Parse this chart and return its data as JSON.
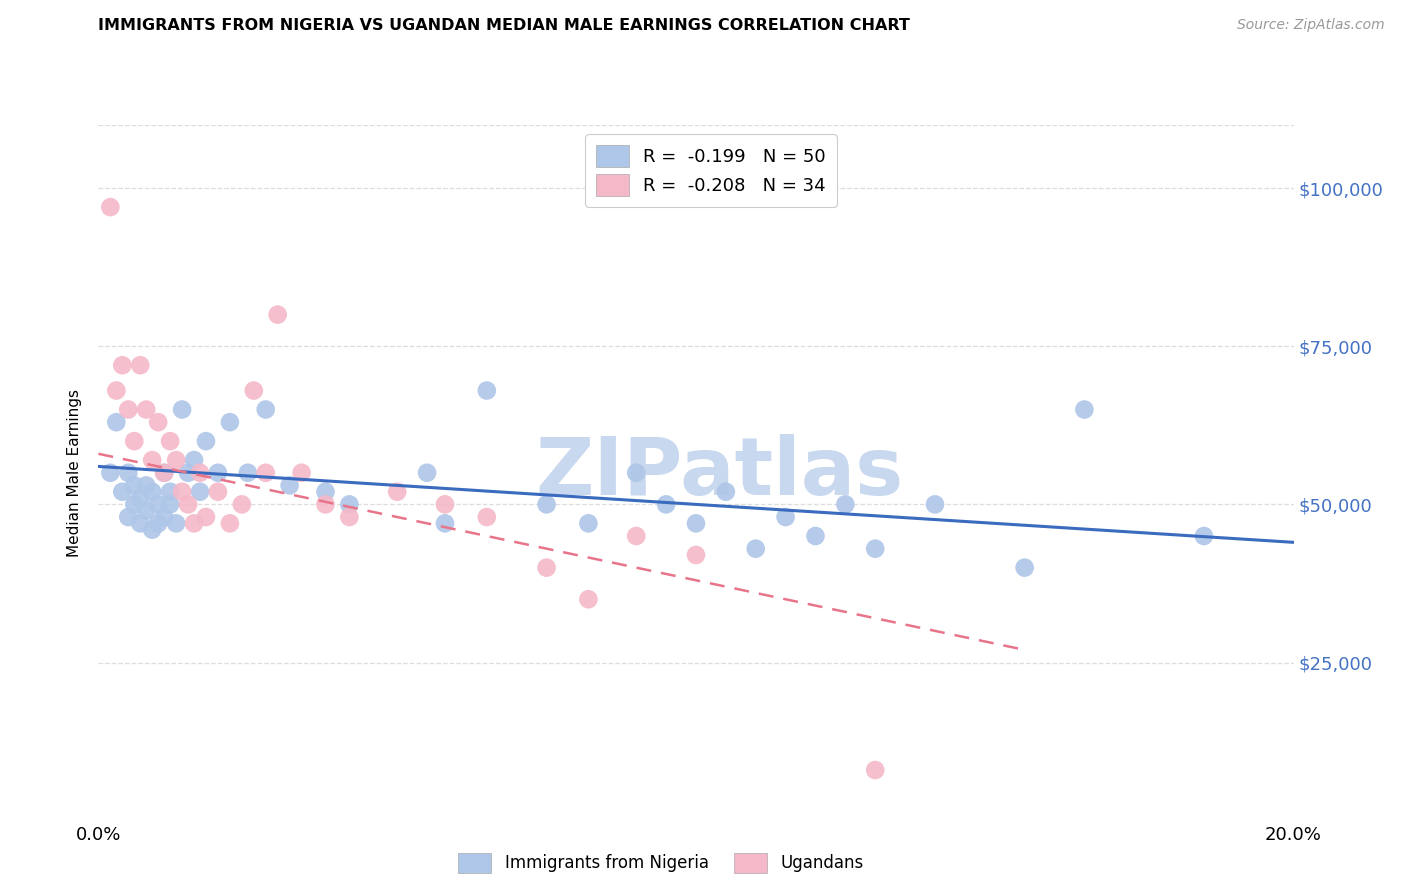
{
  "title": "IMMIGRANTS FROM NIGERIA VS UGANDAN MEDIAN MALE EARNINGS CORRELATION CHART",
  "source": "Source: ZipAtlas.com",
  "ylabel": "Median Male Earnings",
  "xlim": [
    0.0,
    0.2
  ],
  "ylim": [
    0,
    110000
  ],
  "yticks": [
    25000,
    50000,
    75000,
    100000
  ],
  "ytick_labels": [
    "$25,000",
    "$50,000",
    "$75,000",
    "$100,000"
  ],
  "xticks": [
    0.0,
    0.05,
    0.1,
    0.15,
    0.2
  ],
  "xtick_labels": [
    "0.0%",
    "",
    "",
    "",
    "20.0%"
  ],
  "legend_r_nigeria": "-0.199",
  "legend_n_nigeria": "50",
  "legend_r_ugandan": "-0.208",
  "legend_n_ugandan": "34",
  "nigeria_color": "#aec6e8",
  "ugandan_color": "#f4b8c8",
  "nigeria_line_color": "#3a6bbf",
  "ugandan_line_color": "#e8748a",
  "bg_color": "#ffffff",
  "watermark": "ZIPatlas",
  "watermark_color": "#c8d8ee",
  "nigeria_scatter_x": [
    0.002,
    0.003,
    0.004,
    0.005,
    0.005,
    0.006,
    0.006,
    0.007,
    0.007,
    0.008,
    0.008,
    0.009,
    0.009,
    0.01,
    0.01,
    0.011,
    0.011,
    0.012,
    0.012,
    0.013,
    0.014,
    0.015,
    0.016,
    0.017,
    0.018,
    0.02,
    0.022,
    0.025,
    0.028,
    0.032,
    0.038,
    0.042,
    0.055,
    0.058,
    0.065,
    0.075,
    0.082,
    0.09,
    0.095,
    0.1,
    0.105,
    0.11,
    0.115,
    0.12,
    0.125,
    0.13,
    0.14,
    0.155,
    0.165,
    0.185
  ],
  "nigeria_scatter_y": [
    55000,
    63000,
    52000,
    48000,
    55000,
    50000,
    53000,
    47000,
    51000,
    49000,
    53000,
    46000,
    52000,
    50000,
    47000,
    55000,
    48000,
    52000,
    50000,
    47000,
    65000,
    55000,
    57000,
    52000,
    60000,
    55000,
    63000,
    55000,
    65000,
    53000,
    52000,
    50000,
    55000,
    47000,
    68000,
    50000,
    47000,
    55000,
    50000,
    47000,
    52000,
    43000,
    48000,
    45000,
    50000,
    43000,
    50000,
    40000,
    65000,
    45000
  ],
  "ugandan_scatter_x": [
    0.002,
    0.003,
    0.004,
    0.005,
    0.006,
    0.007,
    0.008,
    0.009,
    0.01,
    0.011,
    0.012,
    0.013,
    0.014,
    0.015,
    0.016,
    0.017,
    0.018,
    0.02,
    0.022,
    0.024,
    0.026,
    0.028,
    0.03,
    0.034,
    0.038,
    0.042,
    0.05,
    0.058,
    0.065,
    0.075,
    0.082,
    0.09,
    0.1,
    0.13
  ],
  "ugandan_scatter_y": [
    97000,
    68000,
    72000,
    65000,
    60000,
    72000,
    65000,
    57000,
    63000,
    55000,
    60000,
    57000,
    52000,
    50000,
    47000,
    55000,
    48000,
    52000,
    47000,
    50000,
    68000,
    55000,
    80000,
    55000,
    50000,
    48000,
    52000,
    50000,
    48000,
    40000,
    35000,
    45000,
    42000,
    8000
  ],
  "nigeria_trend_x": [
    0.0,
    0.2
  ],
  "nigeria_trend_y": [
    56000,
    44000
  ],
  "ugandan_trend_x": [
    0.0,
    0.155
  ],
  "ugandan_trend_y": [
    58000,
    27000
  ],
  "grid_color": "#dddddd",
  "grid_linestyle": "--"
}
